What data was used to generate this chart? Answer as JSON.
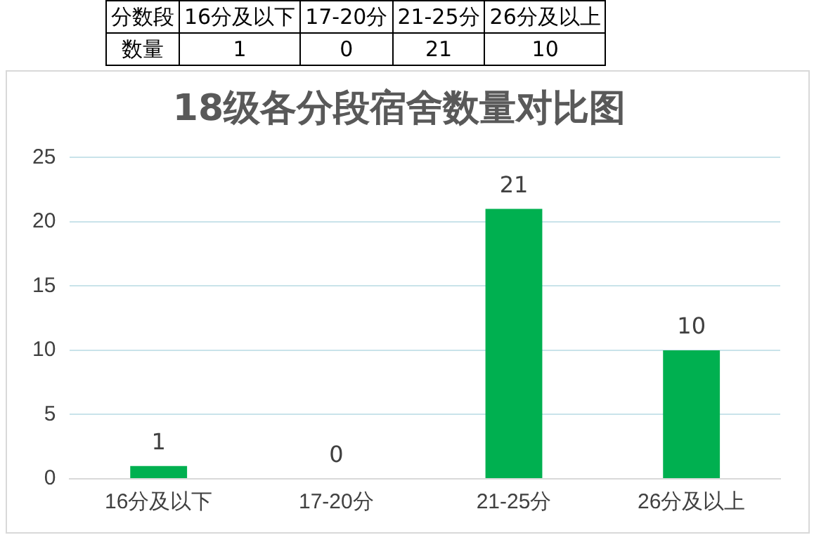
{
  "chart_data": [
    {
      "type": "other",
      "annotations": [
        "分数段",
        "数量"
      ],
      "categories": [
        "16分及以下",
        "17-20分",
        "21-25分",
        "26分及以上"
      ],
      "values": [
        1,
        0,
        21,
        10
      ],
      "data_labels": true
    },
    {
      "type": "bar",
      "title": "18级各分段宿舍数量对比图",
      "categories": [
        "16分及以下",
        "17-20分",
        "21-25分",
        "26分及以上"
      ],
      "values": [
        1,
        0,
        21,
        10
      ],
      "color": "#00b050",
      "ylim": [
        0,
        25
      ],
      "yticks": [
        0,
        5,
        10,
        15,
        20,
        25
      ],
      "grid": "y",
      "data_labels": true,
      "legend": false
    }
  ]
}
